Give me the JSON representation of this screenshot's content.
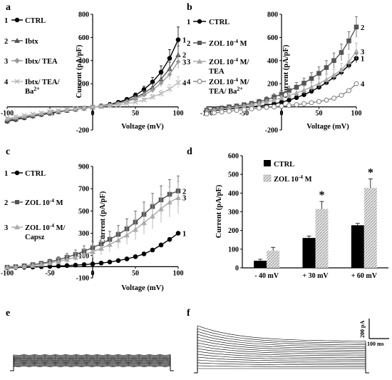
{
  "panels": {
    "a": "a",
    "b": "b",
    "c": "c",
    "d": "d",
    "e": "e",
    "f": "f"
  },
  "chart_data": [
    {
      "panel": "a",
      "type": "line",
      "xlabel": "Voltage (mV)",
      "ylabel": "Current (pA/pF)",
      "xlim": [
        -100,
        100
      ],
      "ylim": [
        -200,
        800
      ],
      "xticks": [
        -100,
        -50,
        0,
        50,
        100
      ],
      "yticks": [
        -200,
        200,
        400,
        600,
        800
      ],
      "x": [
        -100,
        -90,
        -80,
        -70,
        -60,
        -50,
        -40,
        -30,
        -20,
        -10,
        0,
        10,
        20,
        30,
        40,
        50,
        60,
        70,
        80,
        90,
        100
      ],
      "series": [
        {
          "name": "CTRL",
          "number": "1",
          "marker": "circle",
          "color": "#000000",
          "values": [
            -125,
            -110,
            -95,
            -80,
            -67,
            -55,
            -43,
            -32,
            -22,
            -12,
            -3,
            8,
            22,
            40,
            65,
            100,
            150,
            215,
            300,
            420,
            580
          ],
          "errors": [
            20,
            18,
            16,
            14,
            12,
            10,
            8,
            7,
            6,
            5,
            5,
            6,
            8,
            10,
            14,
            20,
            28,
            40,
            55,
            75,
            110
          ]
        },
        {
          "name": "Ibtx",
          "number": "2",
          "marker": "triangle",
          "color": "#555555",
          "values": [
            -120,
            -105,
            -90,
            -76,
            -63,
            -50,
            -40,
            -30,
            -20,
            -11,
            -3,
            7,
            18,
            33,
            52,
            80,
            118,
            170,
            240,
            330,
            450
          ],
          "errors": [
            18,
            16,
            14,
            12,
            10,
            9,
            8,
            7,
            6,
            5,
            5,
            6,
            7,
            9,
            12,
            16,
            22,
            30,
            40,
            55,
            75
          ]
        },
        {
          "name": "Ibtx/ TEA",
          "number": "3",
          "marker": "diamond",
          "color": "#999999",
          "values": [
            -110,
            -96,
            -83,
            -70,
            -58,
            -47,
            -37,
            -28,
            -19,
            -10,
            -2,
            6,
            16,
            29,
            46,
            70,
            102,
            145,
            205,
            280,
            390
          ],
          "errors": [
            16,
            14,
            12,
            11,
            10,
            9,
            8,
            7,
            6,
            5,
            5,
            6,
            7,
            8,
            10,
            14,
            18,
            25,
            32,
            45,
            60
          ]
        },
        {
          "name": "Ibtx/ TEA/ Ba2+",
          "number": "4",
          "marker": "cross",
          "color": "#bbbbbb",
          "values": [
            -100,
            -88,
            -76,
            -64,
            -53,
            -43,
            -34,
            -26,
            -18,
            -10,
            -2,
            4,
            10,
            18,
            28,
            42,
            60,
            85,
            115,
            155,
            210
          ],
          "errors": [
            14,
            13,
            12,
            11,
            10,
            9,
            8,
            7,
            6,
            5,
            5,
            6,
            7,
            8,
            10,
            12,
            15,
            20,
            28,
            38,
            50
          ]
        }
      ]
    },
    {
      "panel": "b",
      "type": "line",
      "xlabel": "Voltage (mV)",
      "ylabel": "Current (pA/pF)",
      "xlim": [
        -100,
        100
      ],
      "ylim": [
        -200,
        800
      ],
      "xticks": [
        -100,
        -50,
        0,
        50,
        100
      ],
      "yticks": [
        -200,
        200,
        400,
        600,
        800
      ],
      "x": [
        -100,
        -90,
        -80,
        -70,
        -60,
        -50,
        -40,
        -30,
        -20,
        -10,
        0,
        10,
        20,
        30,
        40,
        50,
        60,
        70,
        80,
        90,
        100
      ],
      "series": [
        {
          "name": "CTRL",
          "number": "1",
          "marker": "circle",
          "color": "#000000",
          "values": [
            -40,
            -32,
            -25,
            -18,
            -11,
            -5,
            1,
            8,
            16,
            26,
            40,
            58,
            80,
            105,
            135,
            170,
            210,
            255,
            300,
            360,
            420
          ],
          "errors": [
            10,
            9,
            8,
            7,
            6,
            6,
            5,
            5,
            6,
            7,
            8,
            10,
            12,
            14,
            16,
            18,
            20,
            24,
            28,
            32,
            38
          ]
        },
        {
          "name": "ZOL 10-4 M",
          "number": "2",
          "marker": "square",
          "color": "#555555",
          "values": [
            -30,
            -20,
            -10,
            0,
            8,
            18,
            30,
            45,
            62,
            85,
            110,
            140,
            170,
            205,
            245,
            290,
            340,
            400,
            470,
            570,
            690
          ],
          "errors": [
            12,
            12,
            12,
            13,
            14,
            15,
            17,
            20,
            24,
            28,
            32,
            36,
            40,
            44,
            50,
            55,
            60,
            66,
            72,
            80,
            90
          ]
        },
        {
          "name": "ZOL 10-4 M/ TEA",
          "number": "3",
          "marker": "triangle",
          "color": "#aaaaaa",
          "values": [
            -35,
            -27,
            -18,
            -10,
            -2,
            7,
            18,
            30,
            44,
            60,
            78,
            98,
            120,
            145,
            172,
            202,
            236,
            275,
            320,
            390,
            480
          ],
          "errors": [
            10,
            10,
            10,
            11,
            12,
            13,
            14,
            16,
            18,
            20,
            22,
            25,
            28,
            32,
            36,
            40,
            45,
            50,
            56,
            64,
            72
          ]
        },
        {
          "name": "ZOL 10-4 M/ TEA/ Ba2+",
          "number": "4",
          "marker": "open-circle",
          "color": "#888888",
          "values": [
            -60,
            -52,
            -44,
            -37,
            -30,
            -23,
            -17,
            -11,
            -5,
            0,
            6,
            12,
            19,
            27,
            36,
            46,
            58,
            75,
            100,
            140,
            200
          ],
          "errors": [
            6,
            6,
            5,
            5,
            5,
            5,
            5,
            5,
            5,
            5,
            5,
            5,
            5,
            6,
            6,
            7,
            8,
            9,
            10,
            12,
            14
          ]
        }
      ]
    },
    {
      "panel": "c",
      "type": "line",
      "xlabel": "Voltage (mV)",
      "ylabel": "Current (pA/pF)",
      "xlim": [
        -100,
        100
      ],
      "ylim": [
        -100,
        900
      ],
      "xticks": [
        -100,
        -50,
        0,
        50,
        100
      ],
      "yticks": [
        -100,
        100,
        300,
        500,
        700,
        900
      ],
      "x": [
        -100,
        -90,
        -80,
        -70,
        -60,
        -50,
        -40,
        -30,
        -20,
        -10,
        0,
        10,
        20,
        30,
        40,
        50,
        60,
        70,
        80,
        90,
        100
      ],
      "series": [
        {
          "name": "CTRL",
          "number": "1",
          "marker": "circle",
          "color": "#000000",
          "values": [
            -10,
            -7,
            -5,
            -3,
            0,
            3,
            6,
            10,
            14,
            19,
            25,
            33,
            42,
            55,
            70,
            90,
            115,
            150,
            195,
            245,
            300
          ],
          "errors": [
            3,
            3,
            3,
            3,
            3,
            3,
            3,
            3,
            3,
            4,
            4,
            5,
            6,
            7,
            8,
            9,
            10,
            11,
            12,
            14,
            16
          ]
        },
        {
          "name": "ZOL 10-4 M",
          "number": "2",
          "marker": "square",
          "color": "#555555",
          "values": [
            -5,
            0,
            8,
            18,
            30,
            45,
            62,
            85,
            110,
            140,
            170,
            205,
            245,
            290,
            340,
            400,
            470,
            540,
            600,
            650,
            680
          ],
          "errors": [
            5,
            7,
            10,
            14,
            18,
            22,
            28,
            34,
            40,
            48,
            56,
            64,
            72,
            80,
            90,
            100,
            110,
            118,
            126,
            132,
            135
          ]
        },
        {
          "name": "ZOL 10-4 M/ Capsz",
          "number": "3",
          "marker": "triangle",
          "color": "#aaaaaa",
          "values": [
            -5,
            -2,
            4,
            12,
            22,
            34,
            48,
            65,
            85,
            110,
            135,
            165,
            200,
            240,
            285,
            335,
            395,
            455,
            520,
            580,
            620
          ],
          "errors": [
            5,
            6,
            9,
            12,
            16,
            20,
            26,
            32,
            38,
            44,
            52,
            60,
            68,
            76,
            85,
            95,
            105,
            115,
            125,
            135,
            145
          ]
        }
      ]
    },
    {
      "panel": "d",
      "type": "bar",
      "ylabel": "Current (pA/pF)",
      "ylim": [
        0,
        600
      ],
      "yticks": [
        0,
        100,
        200,
        300,
        400,
        500,
        600
      ],
      "categories": [
        "- 40 mV",
        "+ 30 mV",
        "+ 60 mV"
      ],
      "series": [
        {
          "name": "CTRL",
          "color": "#000000",
          "values": [
            38,
            160,
            228
          ],
          "errors": [
            8,
            10,
            10
          ]
        },
        {
          "name": "ZOL 10-4 M",
          "color": "#bbbbbb",
          "values": [
            92,
            315,
            428
          ],
          "errors": [
            18,
            40,
            48
          ]
        }
      ],
      "annotations": [
        "*",
        "*"
      ]
    }
  ],
  "traces": {
    "e": {
      "panel": "e",
      "sweeps": 16
    },
    "f": {
      "panel": "f",
      "sweeps": 16,
      "scalebar_current": "200 pA",
      "scalebar_time": "100 ms"
    }
  }
}
